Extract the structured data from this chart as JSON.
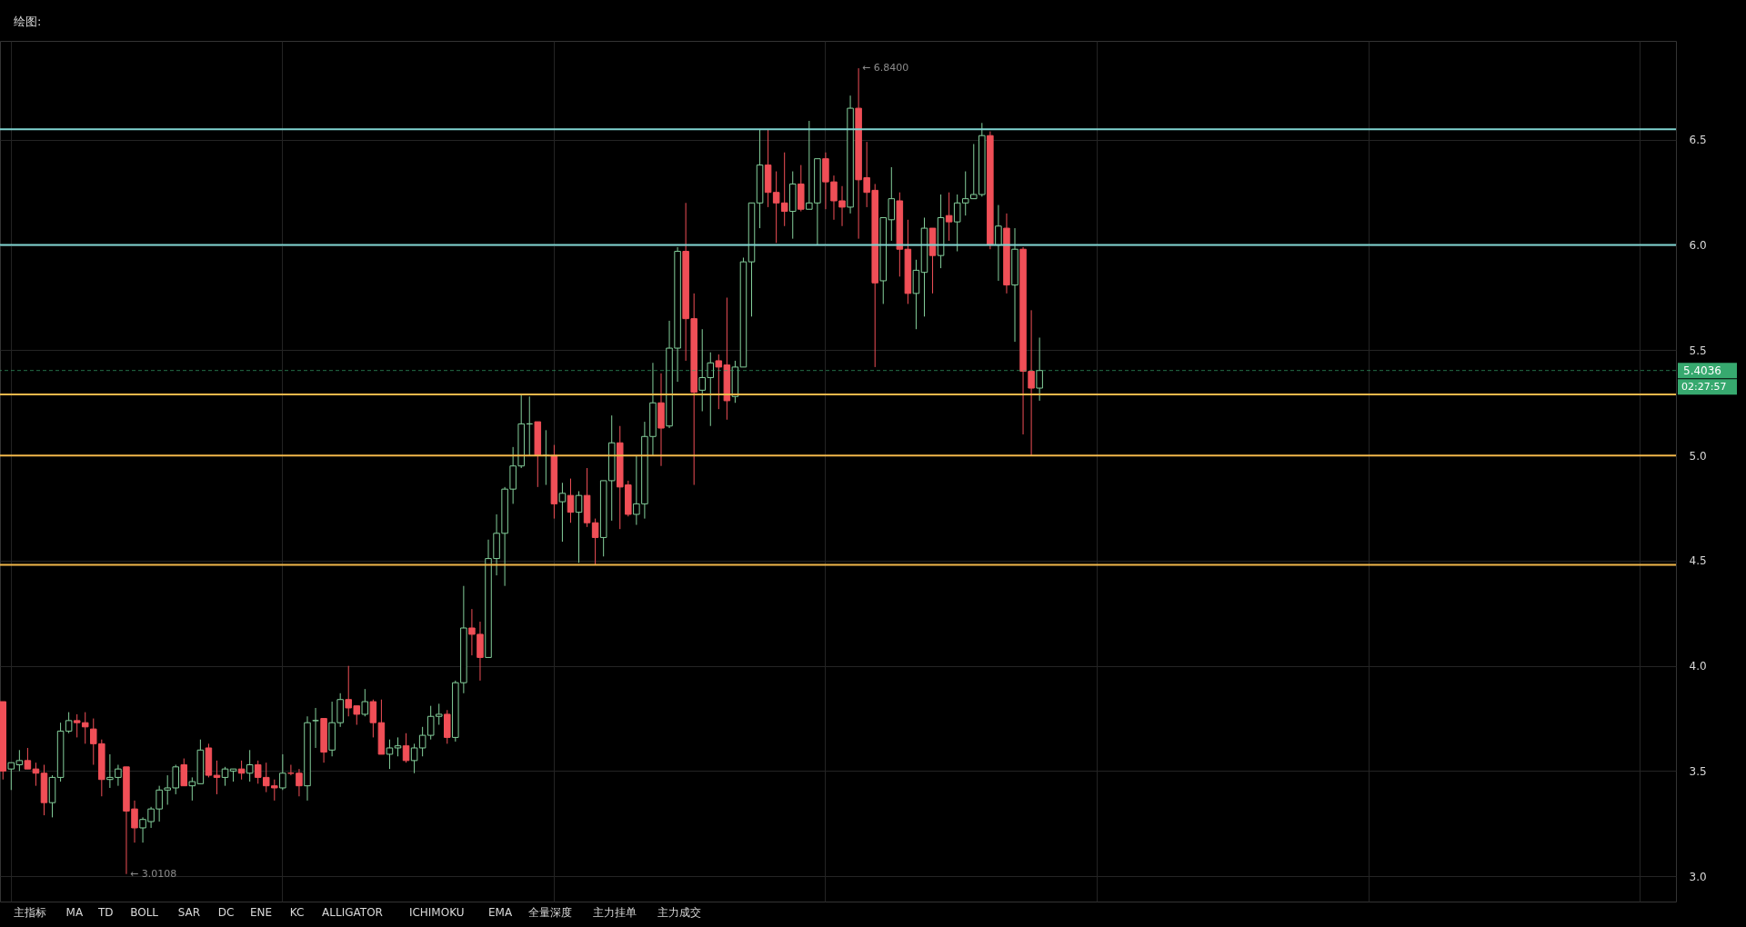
{
  "chart_data": {
    "type": "candlestick",
    "categories": [
      null,
      null,
      null,
      null,
      null,
      null,
      null,
      null,
      null,
      null,
      null,
      null,
      null,
      null,
      null,
      null,
      null,
      null,
      null,
      null,
      null,
      null,
      null,
      null,
      null,
      null,
      null,
      null,
      null,
      null,
      null,
      null,
      null,
      null,
      null,
      null,
      null,
      null,
      null,
      null,
      null,
      null,
      null,
      null,
      null,
      null,
      null,
      null,
      null,
      null,
      null,
      null,
      null,
      null,
      null,
      null,
      null,
      null,
      null,
      null,
      null,
      null,
      null,
      null,
      null,
      null,
      null,
      null,
      null,
      null,
      null,
      null,
      null,
      null,
      null,
      null,
      null,
      null,
      null,
      null,
      null,
      null,
      null,
      null,
      null,
      null,
      null,
      null,
      null,
      null,
      null,
      null,
      null,
      null,
      null,
      null,
      null,
      null,
      null,
      null,
      null,
      null,
      null,
      null,
      null,
      null,
      null,
      null,
      null,
      null,
      null,
      null,
      null,
      null,
      null,
      null,
      null,
      null,
      null,
      null,
      null,
      null,
      null,
      null,
      null,
      null,
      null,
      null,
      null,
      null,
      null,
      null,
      null,
      null,
      null,
      null,
      null,
      null,
      null,
      null,
      null,
      null,
      null,
      null,
      null,
      null,
      null,
      null,
      null,
      null,
      null,
      null,
      null,
      null,
      null,
      null,
      null,
      null,
      null,
      null,
      null,
      null,
      null,
      null,
      null,
      null,
      null,
      null,
      null,
      null,
      null,
      null,
      null,
      null,
      null,
      null,
      null,
      null,
      null,
      null,
      null,
      null,
      null,
      null,
      null,
      null,
      null,
      null,
      null,
      null,
      null,
      null,
      null,
      null,
      null,
      null,
      null,
      null,
      null,
      null,
      null,
      null,
      null,
      null
    ],
    "ohlc": [
      [
        3.83,
        3.83,
        3.46,
        3.5
      ],
      [
        3.51,
        3.54,
        3.41,
        3.54
      ],
      [
        3.53,
        3.6,
        3.5,
        3.55
      ],
      [
        3.55,
        3.61,
        3.51,
        3.51
      ],
      [
        3.51,
        3.54,
        3.43,
        3.49
      ],
      [
        3.49,
        3.53,
        3.29,
        3.35
      ],
      [
        3.35,
        3.48,
        3.28,
        3.47
      ],
      [
        3.47,
        3.73,
        3.45,
        3.69
      ],
      [
        3.69,
        3.78,
        3.68,
        3.74
      ],
      [
        3.74,
        3.77,
        3.66,
        3.73
      ],
      [
        3.73,
        3.78,
        3.63,
        3.71
      ],
      [
        3.7,
        3.75,
        3.53,
        3.63
      ],
      [
        3.63,
        3.65,
        3.38,
        3.46
      ],
      [
        3.46,
        3.58,
        3.42,
        3.47
      ],
      [
        3.47,
        3.53,
        3.43,
        3.51
      ],
      [
        3.52,
        3.52,
        3.0108,
        3.31
      ],
      [
        3.32,
        3.36,
        3.16,
        3.23
      ],
      [
        3.23,
        3.28,
        3.16,
        3.27
      ],
      [
        3.26,
        3.33,
        3.23,
        3.32
      ],
      [
        3.32,
        3.43,
        3.26,
        3.41
      ],
      [
        3.41,
        3.48,
        3.34,
        3.42
      ],
      [
        3.42,
        3.53,
        3.39,
        3.52
      ],
      [
        3.53,
        3.56,
        3.43,
        3.43
      ],
      [
        3.43,
        3.47,
        3.36,
        3.45
      ],
      [
        3.44,
        3.65,
        3.44,
        3.6
      ],
      [
        3.61,
        3.63,
        3.47,
        3.48
      ],
      [
        3.48,
        3.55,
        3.39,
        3.47
      ],
      [
        3.47,
        3.52,
        3.43,
        3.51
      ],
      [
        3.5,
        3.51,
        3.45,
        3.51
      ],
      [
        3.51,
        3.55,
        3.46,
        3.49
      ],
      [
        3.49,
        3.6,
        3.45,
        3.53
      ],
      [
        3.53,
        3.55,
        3.44,
        3.47
      ],
      [
        3.47,
        3.54,
        3.4,
        3.43
      ],
      [
        3.43,
        3.46,
        3.36,
        3.42
      ],
      [
        3.42,
        3.58,
        3.41,
        3.49
      ],
      [
        3.49,
        3.53,
        3.48,
        3.49
      ],
      [
        3.49,
        3.51,
        3.38,
        3.43
      ],
      [
        3.43,
        3.76,
        3.36,
        3.73
      ],
      [
        3.74,
        3.8,
        3.61,
        3.74
      ],
      [
        3.75,
        3.75,
        3.54,
        3.59
      ],
      [
        3.6,
        3.83,
        3.57,
        3.73
      ],
      [
        3.73,
        3.87,
        3.71,
        3.84
      ],
      [
        3.84,
        4.0,
        3.76,
        3.8
      ],
      [
        3.81,
        3.81,
        3.72,
        3.77
      ],
      [
        3.77,
        3.89,
        3.76,
        3.83
      ],
      [
        3.83,
        3.84,
        3.66,
        3.73
      ],
      [
        3.73,
        3.84,
        3.58,
        3.58
      ],
      [
        3.58,
        3.65,
        3.51,
        3.61
      ],
      [
        3.61,
        3.66,
        3.57,
        3.62
      ],
      [
        3.62,
        3.68,
        3.54,
        3.55
      ],
      [
        3.55,
        3.63,
        3.49,
        3.61
      ],
      [
        3.61,
        3.71,
        3.57,
        3.67
      ],
      [
        3.67,
        3.81,
        3.65,
        3.76
      ],
      [
        3.76,
        3.82,
        3.72,
        3.77
      ],
      [
        3.77,
        3.79,
        3.63,
        3.66
      ],
      [
        3.66,
        3.93,
        3.64,
        3.92
      ],
      [
        3.92,
        4.38,
        3.87,
        4.18
      ],
      [
        4.18,
        4.27,
        4.05,
        4.15
      ],
      [
        4.15,
        4.21,
        3.93,
        4.04
      ],
      [
        4.04,
        4.6,
        4.04,
        4.51
      ],
      [
        4.51,
        4.72,
        4.43,
        4.63
      ],
      [
        4.63,
        4.85,
        4.38,
        4.84
      ],
      [
        4.84,
        5.04,
        4.77,
        4.95
      ],
      [
        4.95,
        5.29,
        4.94,
        5.15
      ],
      [
        5.15,
        5.28,
        5.0,
        5.15
      ],
      [
        5.16,
        5.16,
        4.85,
        5.0
      ],
      [
        5.0,
        5.12,
        4.86,
        5.0
      ],
      [
        5.0,
        5.05,
        4.7,
        4.77
      ],
      [
        4.78,
        4.87,
        4.59,
        4.82
      ],
      [
        4.81,
        4.89,
        4.68,
        4.73
      ],
      [
        4.73,
        4.83,
        4.49,
        4.81
      ],
      [
        4.81,
        4.94,
        4.66,
        4.68
      ],
      [
        4.68,
        4.7,
        4.48,
        4.61
      ],
      [
        4.61,
        4.88,
        4.52,
        4.88
      ],
      [
        4.88,
        5.19,
        4.69,
        5.06
      ],
      [
        5.06,
        5.14,
        4.65,
        4.85
      ],
      [
        4.86,
        4.88,
        4.71,
        4.72
      ],
      [
        4.72,
        5.0,
        4.67,
        4.77
      ],
      [
        4.77,
        5.16,
        4.7,
        5.09
      ],
      [
        5.09,
        5.44,
        5.0,
        5.25
      ],
      [
        5.25,
        5.39,
        4.95,
        5.13
      ],
      [
        5.14,
        5.64,
        5.13,
        5.51
      ],
      [
        5.51,
        5.99,
        5.35,
        5.97
      ],
      [
        5.97,
        6.2,
        5.45,
        5.65
      ],
      [
        5.65,
        5.77,
        4.86,
        5.3
      ],
      [
        5.31,
        5.6,
        5.21,
        5.37
      ],
      [
        5.37,
        5.49,
        5.14,
        5.44
      ],
      [
        5.45,
        5.48,
        5.22,
        5.42
      ],
      [
        5.43,
        5.75,
        5.17,
        5.26
      ],
      [
        5.28,
        5.45,
        5.25,
        5.42
      ],
      [
        5.42,
        5.94,
        5.42,
        5.92
      ],
      [
        5.92,
        6.2,
        5.66,
        6.2
      ],
      [
        6.2,
        6.55,
        6.08,
        6.38
      ],
      [
        6.38,
        6.55,
        6.18,
        6.25
      ],
      [
        6.25,
        6.35,
        6.01,
        6.2
      ],
      [
        6.2,
        6.44,
        6.09,
        6.16
      ],
      [
        6.16,
        6.35,
        6.03,
        6.29
      ],
      [
        6.29,
        6.38,
        6.16,
        6.17
      ],
      [
        6.17,
        6.59,
        6.17,
        6.2
      ],
      [
        6.2,
        6.41,
        6.0,
        6.41
      ],
      [
        6.41,
        6.44,
        6.17,
        6.3
      ],
      [
        6.3,
        6.33,
        6.12,
        6.21
      ],
      [
        6.21,
        6.28,
        6.09,
        6.18
      ],
      [
        6.18,
        6.71,
        6.15,
        6.65
      ],
      [
        6.65,
        6.84,
        6.03,
        6.31
      ],
      [
        6.32,
        6.49,
        6.18,
        6.25
      ],
      [
        6.26,
        6.29,
        5.42,
        5.82
      ],
      [
        5.83,
        6.13,
        5.72,
        6.13
      ],
      [
        6.12,
        6.37,
        6.02,
        6.22
      ],
      [
        6.21,
        6.25,
        5.85,
        5.98
      ],
      [
        5.98,
        6.12,
        5.72,
        5.77
      ],
      [
        5.77,
        5.93,
        5.6,
        5.88
      ],
      [
        5.87,
        6.13,
        5.66,
        6.08
      ],
      [
        6.08,
        6.08,
        5.77,
        5.95
      ],
      [
        5.95,
        6.24,
        5.89,
        6.13
      ],
      [
        6.14,
        6.25,
        6.02,
        6.11
      ],
      [
        6.11,
        6.24,
        5.97,
        6.2
      ],
      [
        6.2,
        6.35,
        6.14,
        6.22
      ],
      [
        6.22,
        6.48,
        6.22,
        6.24
      ],
      [
        6.24,
        6.58,
        6.23,
        6.52
      ],
      [
        6.52,
        6.54,
        5.98,
        6.0
      ],
      [
        6.0,
        6.19,
        5.83,
        6.09
      ],
      [
        6.08,
        6.15,
        5.77,
        5.81
      ],
      [
        5.81,
        6.08,
        5.54,
        5.98
      ],
      [
        5.98,
        5.99,
        5.1,
        5.4
      ],
      [
        5.4,
        5.69,
        5.0,
        5.32
      ],
      [
        5.32,
        5.56,
        5.26,
        5.4036
      ],
      null,
      null,
      null,
      null,
      null,
      null,
      null,
      null,
      null,
      null,
      null,
      null,
      null,
      null,
      null,
      null,
      null,
      null,
      null,
      null,
      null,
      null,
      null,
      null,
      null,
      null,
      null,
      null,
      null,
      null,
      null,
      null,
      null,
      null,
      null,
      null,
      null,
      null,
      null,
      null,
      null,
      null,
      null,
      null,
      null,
      null,
      null,
      null,
      null,
      null,
      null,
      null,
      null,
      null,
      null,
      null,
      null,
      null,
      null,
      null,
      null,
      null,
      null,
      null,
      null,
      null,
      null,
      null,
      null,
      null,
      null,
      null,
      null,
      null,
      null,
      null,
      null
    ],
    "colors": [
      "#f04f57",
      "#84cf9b",
      "#84cf9b",
      "#f04f57",
      "#f04f57",
      "#f04f57",
      "#84cf9b",
      "#84cf9b",
      "#84cf9b",
      "#f04f57",
      "#f04f57",
      "#f04f57",
      "#f04f57",
      "#84cf9b",
      "#84cf9b",
      "#f04f57",
      "#f04f57",
      "#84cf9b",
      "#84cf9b",
      "#84cf9b",
      "#84cf9b",
      "#84cf9b",
      "#f04f57",
      "#84cf9b",
      "#84cf9b",
      "#f04f57",
      "#f04f57",
      "#84cf9b",
      "#84cf9b",
      "#f04f57",
      "#84cf9b",
      "#f04f57",
      "#f04f57",
      "#f04f57",
      "#84cf9b",
      "#f04f57",
      "#f04f57",
      "#84cf9b",
      "#84cf9b",
      "#f04f57",
      "#84cf9b",
      "#84cf9b",
      "#f04f57",
      "#f04f57",
      "#84cf9b",
      "#f04f57",
      "#f04f57",
      "#84cf9b",
      "#84cf9b",
      "#f04f57",
      "#84cf9b",
      "#84cf9b",
      "#84cf9b",
      "#84cf9b",
      "#f04f57",
      "#84cf9b",
      "#84cf9b",
      "#f04f57",
      "#f04f57",
      "#84cf9b",
      "#84cf9b",
      "#84cf9b",
      "#84cf9b",
      "#84cf9b",
      "#84cf9b",
      "#f04f57",
      "#84cf9b",
      "#f04f57",
      "#84cf9b",
      "#f04f57",
      "#84cf9b",
      "#f04f57",
      "#f04f57",
      "#84cf9b",
      "#84cf9b",
      "#f04f57",
      "#f04f57",
      "#84cf9b",
      "#84cf9b",
      "#84cf9b",
      "#f04f57",
      "#84cf9b",
      "#84cf9b",
      "#f04f57",
      "#f04f57",
      "#84cf9b",
      "#84cf9b",
      "#f04f57",
      "#f04f57",
      "#84cf9b",
      "#84cf9b",
      "#84cf9b",
      "#84cf9b",
      "#f04f57",
      "#f04f57",
      "#f04f57",
      "#84cf9b",
      "#f04f57",
      "#84cf9b",
      "#84cf9b",
      "#f04f57",
      "#f04f57",
      "#f04f57",
      "#84cf9b",
      "#f04f57",
      "#f04f57",
      "#f04f57",
      "#84cf9b",
      "#84cf9b",
      "#f04f57",
      "#f04f57",
      "#84cf9b",
      "#84cf9b",
      "#f04f57",
      "#84cf9b",
      "#f04f57",
      "#84cf9b",
      "#84cf9b",
      "#84cf9b",
      "#84cf9b",
      "#f04f57",
      "#84cf9b",
      "#f04f57",
      "#84cf9b",
      "#f04f57",
      "#f04f57",
      "#84cf9b",
      null,
      null,
      null,
      null,
      null,
      null,
      null,
      null,
      null,
      null,
      null,
      null,
      null,
      null,
      null,
      null,
      null,
      null,
      null,
      null,
      null,
      null,
      null,
      null,
      null,
      null,
      null,
      null,
      null,
      null,
      null,
      null,
      null,
      null,
      null,
      null,
      null,
      null,
      null,
      null,
      null,
      null,
      null,
      null,
      null,
      null,
      null,
      null,
      null,
      null,
      null,
      null,
      null,
      null,
      null,
      null,
      null,
      null,
      null,
      null,
      null,
      null,
      null,
      null,
      null,
      null,
      null,
      null,
      null,
      null,
      null,
      null,
      null,
      null,
      null,
      null,
      null
    ],
    "ylim": [
      2.88,
      6.97
    ],
    "yticks": [
      {
        "value": 3,
        "label": "3.0"
      },
      3.5,
      {
        "value": 4,
        "label": "4.0"
      },
      4.5,
      {
        "value": 5,
        "label": "5.0"
      },
      5.5,
      {
        "value": 6,
        "label": "6.0"
      },
      6.5
    ],
    "grid": true,
    "tick_labels": "y",
    "ref_lines": [
      {
        "axis": "y",
        "value": 6.55,
        "color": "#7fd3d0"
      },
      {
        "axis": "y",
        "value": 6.0,
        "color": "#7fd3d0"
      },
      {
        "axis": "y",
        "value": 5.29,
        "color": "#f2b84b"
      },
      {
        "axis": "y",
        "value": 5.0,
        "color": "#f2b84b"
      },
      {
        "axis": "y",
        "value": 4.48,
        "color": "#f2b84b"
      },
      {
        "axis": "y",
        "value": 5.4036,
        "label": "5.4036",
        "color": "#37a96f",
        "line_style": "dashed"
      }
    ],
    "annotations": [
      "绘图:",
      "← 6.8400",
      "← 3.0108",
      "02:27:57",
      "主指标",
      "MA",
      "TD",
      "BOLL",
      "SAR",
      "DC",
      "ENE",
      "KC",
      "ALLIGATOR",
      "ICHIMOKU",
      "EMA",
      "全量深度",
      "主力挂单",
      "主力成交"
    ]
  }
}
